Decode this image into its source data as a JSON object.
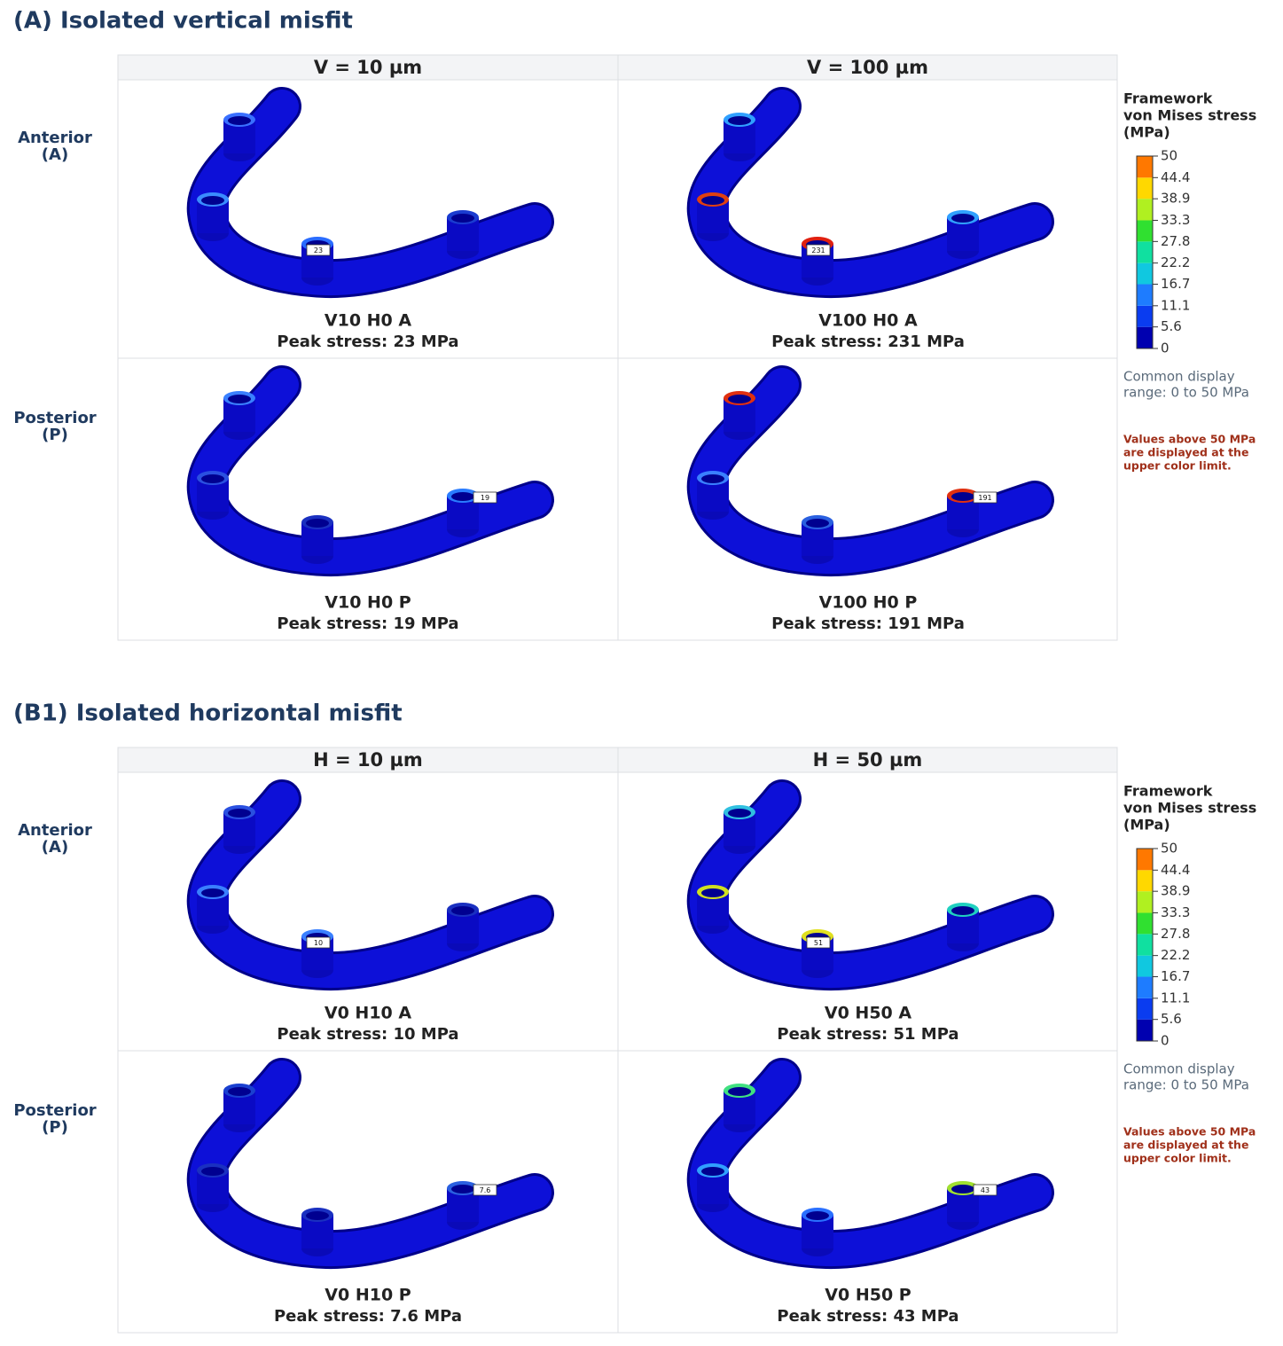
{
  "panels": [
    {
      "title": "(A) Isolated vertical misfit",
      "columns": [
        "V = 10 µm",
        "V = 100 µm"
      ],
      "rows": [
        {
          "label": [
            "Anterior",
            "(A)"
          ]
        },
        {
          "label": [
            "Posterior",
            "(P)"
          ]
        }
      ],
      "cells": [
        [
          {
            "name": "V10 H0 A",
            "peak": "Peak stress: 23 MPa",
            "marker": "23"
          },
          {
            "name": "V100 H0 A",
            "peak": "Peak stress: 231 MPa",
            "marker": "231"
          }
        ],
        [
          {
            "name": "V10 H0 P",
            "peak": "Peak stress: 19 MPa",
            "marker": "19"
          },
          {
            "name": "V100 H0 P",
            "peak": "Peak stress: 191 MPa",
            "marker": "191"
          }
        ]
      ],
      "legend": {
        "title": [
          "Framework",
          "von Mises stress",
          "(MPa)"
        ],
        "ticks": [
          0,
          5.6,
          11.1,
          16.7,
          22.2,
          27.8,
          33.3,
          38.9,
          44.4,
          50
        ],
        "colors": [
          "#0000b0",
          "#0a3cf0",
          "#1e7cff",
          "#10c8e0",
          "#10e0a0",
          "#30e030",
          "#b0f020",
          "#ffd800",
          "#ff7800",
          "#f00000"
        ],
        "note": [
          "Common display",
          "range: 0 to 50 MPa"
        ],
        "warning": [
          "Values above 50 MPa",
          "are displayed at the",
          "upper color limit."
        ]
      }
    },
    {
      "title": "(B1) Isolated horizontal misfit",
      "columns": [
        "H = 10 µm",
        "H = 50 µm"
      ],
      "rows": [
        {
          "label": [
            "Anterior",
            "(A)"
          ]
        },
        {
          "label": [
            "Posterior",
            "(P)"
          ]
        }
      ],
      "cells": [
        [
          {
            "name": "V0 H10 A",
            "peak": "Peak stress: 10 MPa",
            "marker": "10"
          },
          {
            "name": "V0 H50 A",
            "peak": "Peak stress: 51 MPa",
            "marker": "51"
          }
        ],
        [
          {
            "name": "V0 H10 P",
            "peak": "Peak stress: 7.6 MPa",
            "marker": "7.6"
          },
          {
            "name": "V0 H50 P",
            "peak": "Peak stress: 43 MPa",
            "marker": "43"
          }
        ]
      ],
      "legend": {
        "title": [
          "Framework",
          "von Mises stress",
          "(MPa)"
        ],
        "ticks": [
          0,
          5.6,
          11.1,
          16.7,
          22.2,
          27.8,
          33.3,
          38.9,
          44.4,
          50
        ],
        "colors": [
          "#0000b0",
          "#0a3cf0",
          "#1e7cff",
          "#10c8e0",
          "#10e0a0",
          "#30e030",
          "#b0f020",
          "#ffd800",
          "#ff7800",
          "#f00000"
        ],
        "note": [
          "Common display",
          "range: 0 to 50 MPa"
        ],
        "warning": [
          "Values above 50 MPa",
          "are displayed at the",
          "upper color limit."
        ]
      }
    }
  ]
}
